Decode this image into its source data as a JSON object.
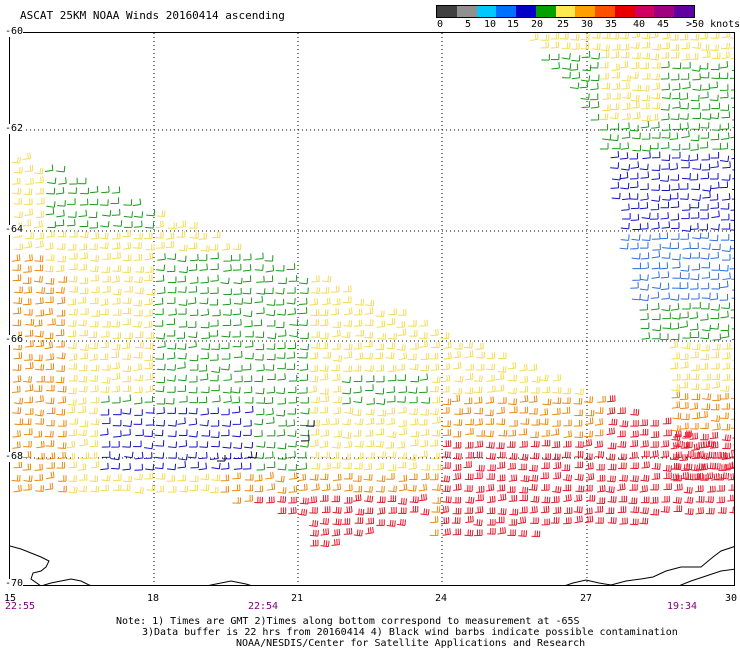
{
  "title": "ASCAT 25KM NOAA Winds 20160414 ascending",
  "legend": {
    "labels": [
      "0",
      "5",
      "10",
      "15",
      "20",
      "25",
      "30",
      "35",
      "40",
      "45",
      ">50 knots"
    ],
    "colors": [
      "#404040",
      "#909090",
      "#00c8ff",
      "#0070ff",
      "#0000c8",
      "#00a000",
      "#ffe850",
      "#ffa000",
      "#ff5000",
      "#e80000",
      "#d00060",
      "#a00080",
      "#6000a0"
    ]
  },
  "axes": {
    "lat_labels": [
      "-60",
      "-62",
      "-64",
      "-66",
      "-68",
      "-70"
    ],
    "lon_labels": [
      "15",
      "18",
      "21",
      "24",
      "27",
      "30"
    ]
  },
  "times": [
    "22:55",
    "22:54",
    "19:34"
  ],
  "notes": {
    "line1": "Note: 1) Times are GMT 2)Times along bottom correspond to measurement at -65S",
    "line2": "3)Data buffer is 22 hrs from 20160414 4) Black wind barbs indicate possible contamination",
    "line3": "NOAA/NESDIS/Center for Satellite Applications and Research"
  },
  "colors": {
    "gray": "#505050",
    "yellow": "#f5dc5a",
    "orange": "#ec8a10",
    "red": "#e8182a",
    "green": "#1a9a1a",
    "blue": "#1010c8",
    "lightblue": "#2a6ee0",
    "black": "#000000",
    "grid": "#000000",
    "time_purple": "#800080"
  }
}
